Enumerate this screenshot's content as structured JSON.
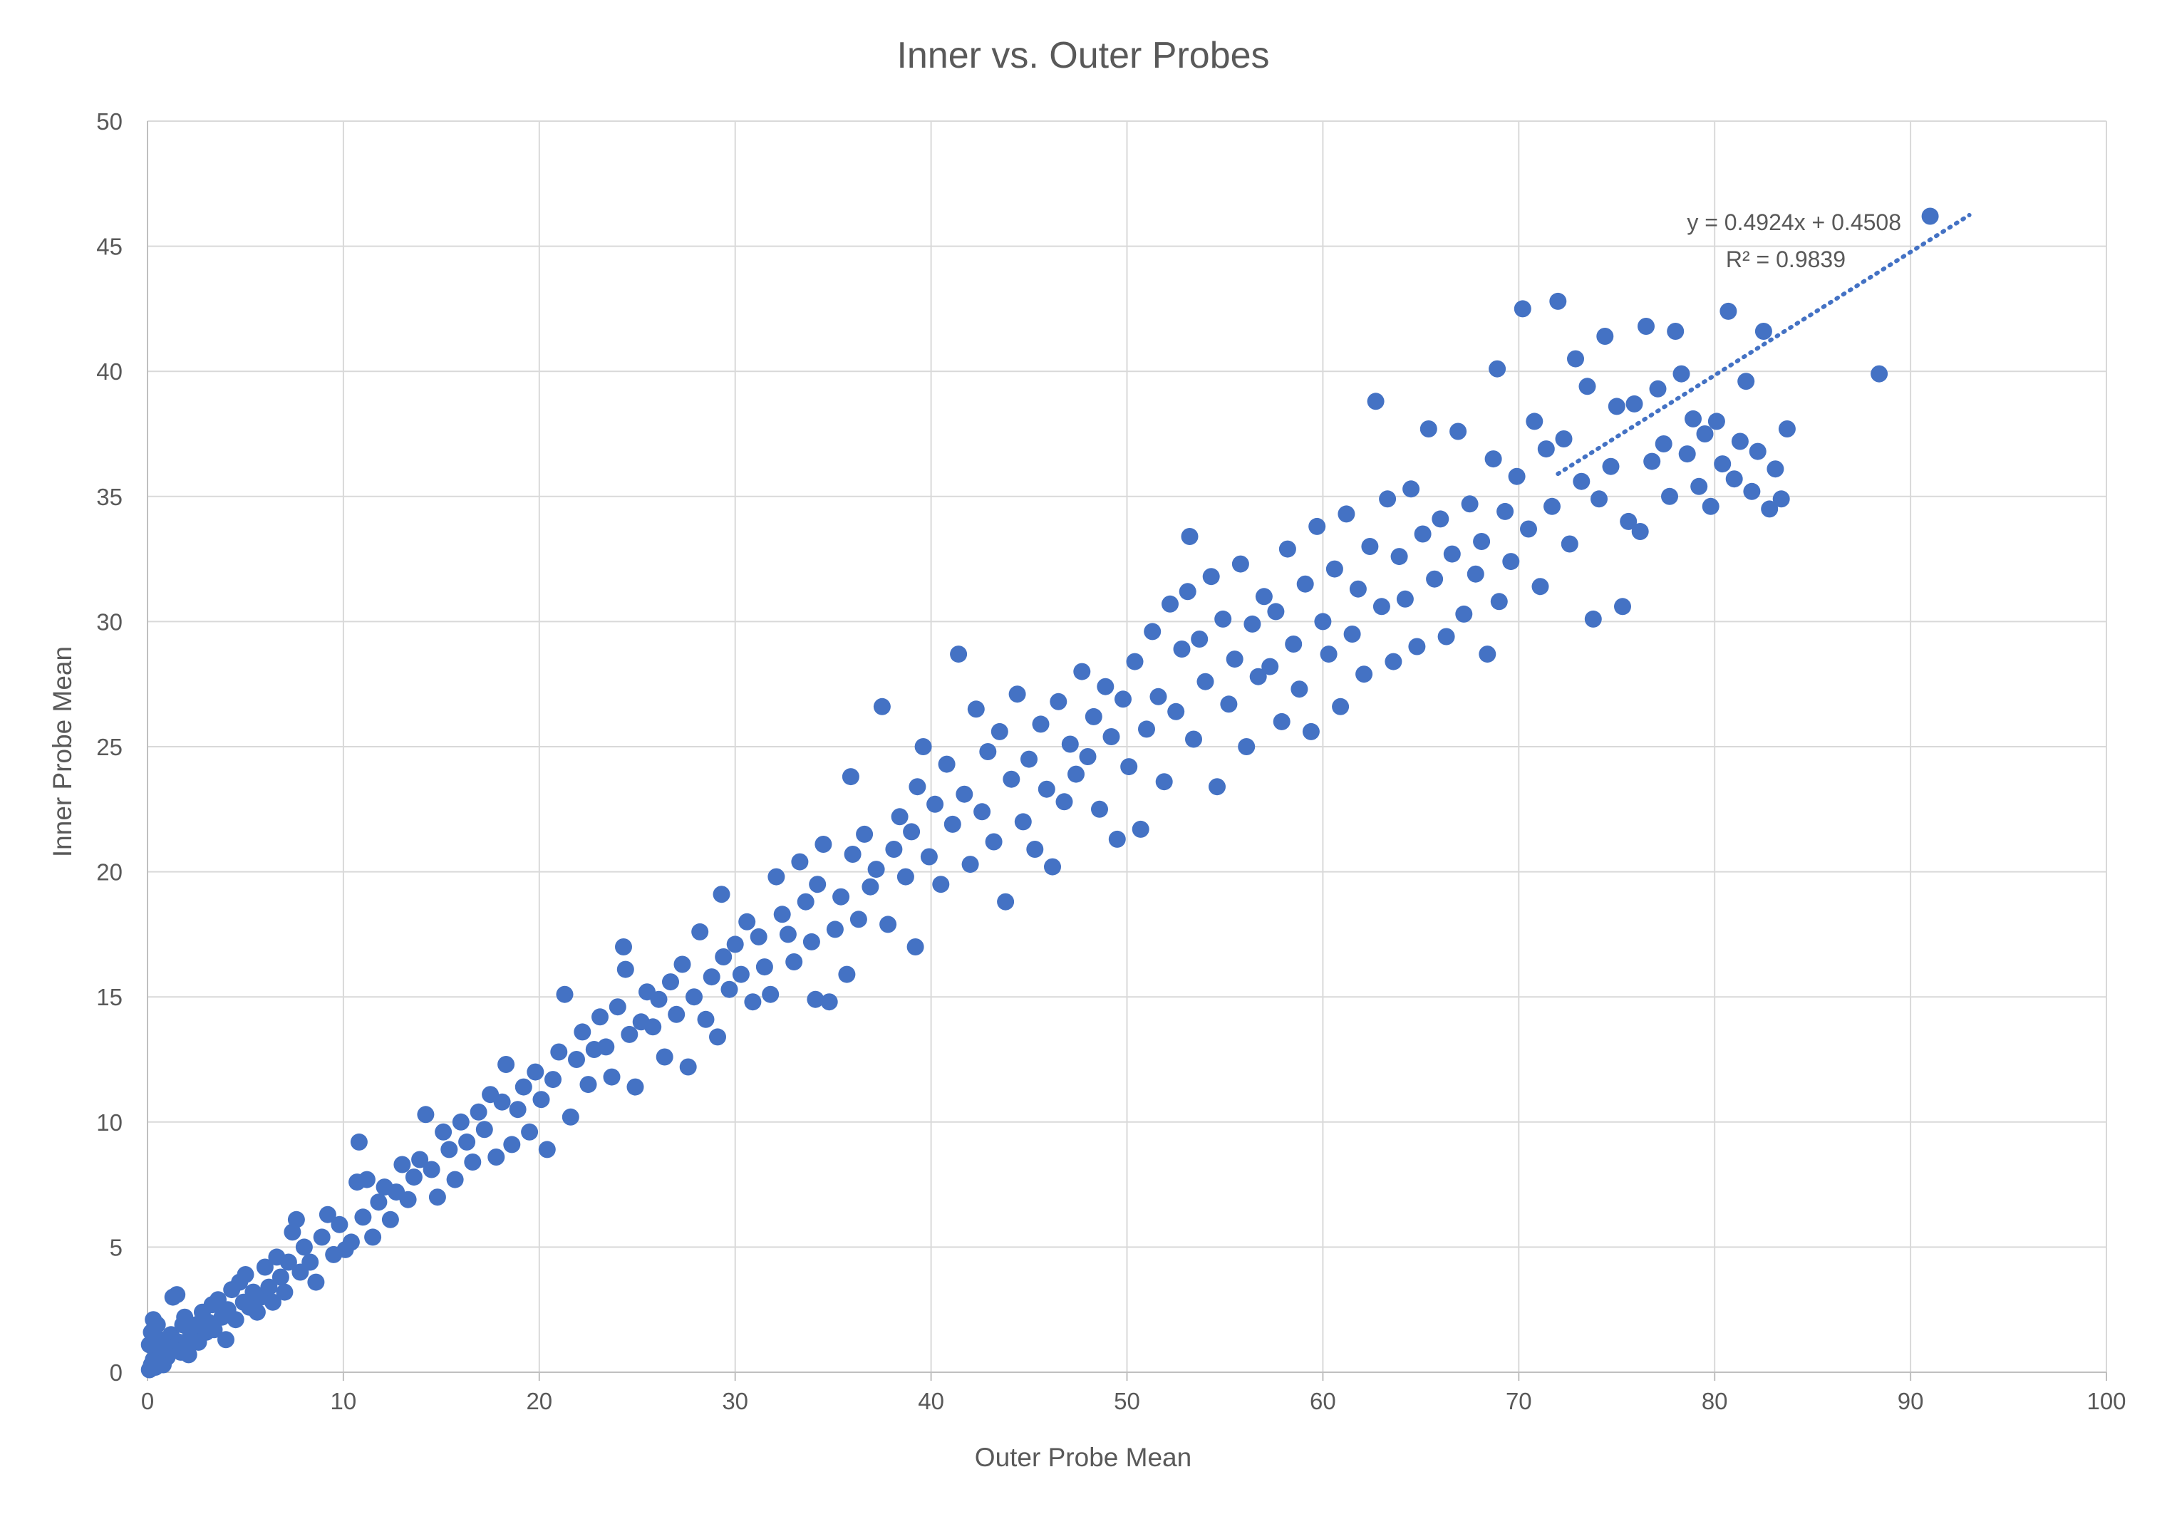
{
  "chart_data": {
    "type": "scatter",
    "title": "Inner vs. Outer Probes",
    "xlabel": "Outer Probe Mean",
    "ylabel": "Inner Probe Mean",
    "xlim": [
      0,
      100
    ],
    "ylim": [
      0,
      50
    ],
    "xticks": [
      0,
      10,
      20,
      30,
      40,
      50,
      60,
      70,
      80,
      90,
      100
    ],
    "yticks": [
      0,
      5,
      10,
      15,
      20,
      25,
      30,
      35,
      40,
      45,
      50
    ],
    "grid": true,
    "legend": "none",
    "point_color": "#4472c4",
    "trendline": {
      "type": "linear",
      "slope": 0.4924,
      "intercept": 0.4508,
      "x_range": [
        72,
        93
      ],
      "equation": "y = 0.4924x + 0.4508",
      "r_squared": "R² = 0.9839",
      "color": "#4472c4"
    },
    "series": [
      {
        "points": [
          [
            0.1,
            0.1
          ],
          [
            0.2,
            0.3
          ],
          [
            0.3,
            0.5
          ],
          [
            0.4,
            0.2
          ],
          [
            0.5,
            0.8
          ],
          [
            0.6,
            0.4
          ],
          [
            0.7,
            1.0
          ],
          [
            0.8,
            0.3
          ],
          [
            0.9,
            1.3
          ],
          [
            1.0,
            0.6
          ],
          [
            0.1,
            1.1
          ],
          [
            0.2,
            1.6
          ],
          [
            0.3,
            2.1
          ],
          [
            0.4,
            1.4
          ],
          [
            0.5,
            1.9
          ],
          [
            1.1,
            0.9
          ],
          [
            1.2,
            1.5
          ],
          [
            1.3,
            3.0
          ],
          [
            1.5,
            3.1
          ],
          [
            1.6,
            1.2
          ],
          [
            1.7,
            0.8
          ],
          [
            1.8,
            1.9
          ],
          [
            1.9,
            2.2
          ],
          [
            2.0,
            1.1
          ],
          [
            2.1,
            0.7
          ],
          [
            2.2,
            1.6
          ],
          [
            2.3,
            1.4
          ],
          [
            2.5,
            1.9
          ],
          [
            2.6,
            1.2
          ],
          [
            2.8,
            2.4
          ],
          [
            3.0,
            1.6
          ],
          [
            3.1,
            2.0
          ],
          [
            3.3,
            2.7
          ],
          [
            3.4,
            1.7
          ],
          [
            3.6,
            2.9
          ],
          [
            3.8,
            2.2
          ],
          [
            4.0,
            1.3
          ],
          [
            4.1,
            2.5
          ],
          [
            4.3,
            3.3
          ],
          [
            4.5,
            2.1
          ],
          [
            4.7,
            3.6
          ],
          [
            4.9,
            2.8
          ],
          [
            5.0,
            3.9
          ],
          [
            5.2,
            2.6
          ],
          [
            5.4,
            3.2
          ],
          [
            5.6,
            2.4
          ],
          [
            5.8,
            3.0
          ],
          [
            6.0,
            4.2
          ],
          [
            6.2,
            3.4
          ],
          [
            6.4,
            2.8
          ],
          [
            6.6,
            4.6
          ],
          [
            6.8,
            3.8
          ],
          [
            7.0,
            3.2
          ],
          [
            7.2,
            4.4
          ],
          [
            7.4,
            5.6
          ],
          [
            7.6,
            6.1
          ],
          [
            7.8,
            4.0
          ],
          [
            8.0,
            5.0
          ],
          [
            8.3,
            4.4
          ],
          [
            8.6,
            3.6
          ],
          [
            8.9,
            5.4
          ],
          [
            9.2,
            6.3
          ],
          [
            9.5,
            4.7
          ],
          [
            9.8,
            5.9
          ],
          [
            10.1,
            4.9
          ],
          [
            10.4,
            5.2
          ],
          [
            10.7,
            7.6
          ],
          [
            10.8,
            9.2
          ],
          [
            11.0,
            6.2
          ],
          [
            11.2,
            7.7
          ],
          [
            11.5,
            5.4
          ],
          [
            11.8,
            6.8
          ],
          [
            12.1,
            7.4
          ],
          [
            12.4,
            6.1
          ],
          [
            12.7,
            7.2
          ],
          [
            13.0,
            8.3
          ],
          [
            13.3,
            6.9
          ],
          [
            13.6,
            7.8
          ],
          [
            13.9,
            8.5
          ],
          [
            14.2,
            10.3
          ],
          [
            14.5,
            8.1
          ],
          [
            14.8,
            7.0
          ],
          [
            15.1,
            9.6
          ],
          [
            15.4,
            8.9
          ],
          [
            15.7,
            7.7
          ],
          [
            16.0,
            10.0
          ],
          [
            16.3,
            9.2
          ],
          [
            16.6,
            8.4
          ],
          [
            16.9,
            10.4
          ],
          [
            17.2,
            9.7
          ],
          [
            17.5,
            11.1
          ],
          [
            17.8,
            8.6
          ],
          [
            18.1,
            10.8
          ],
          [
            18.3,
            12.3
          ],
          [
            18.6,
            9.1
          ],
          [
            18.9,
            10.5
          ],
          [
            19.2,
            11.4
          ],
          [
            19.5,
            9.6
          ],
          [
            19.8,
            12.0
          ],
          [
            20.1,
            10.9
          ],
          [
            20.4,
            8.9
          ],
          [
            20.7,
            11.7
          ],
          [
            21.0,
            12.8
          ],
          [
            21.3,
            15.1
          ],
          [
            21.6,
            10.2
          ],
          [
            21.9,
            12.5
          ],
          [
            22.2,
            13.6
          ],
          [
            22.5,
            11.5
          ],
          [
            22.8,
            12.9
          ],
          [
            23.1,
            14.2
          ],
          [
            23.4,
            13.0
          ],
          [
            23.7,
            11.8
          ],
          [
            24.0,
            14.6
          ],
          [
            24.3,
            17.0
          ],
          [
            24.4,
            16.1
          ],
          [
            24.6,
            13.5
          ],
          [
            24.9,
            11.4
          ],
          [
            25.2,
            14.0
          ],
          [
            25.5,
            15.2
          ],
          [
            25.8,
            13.8
          ],
          [
            26.1,
            14.9
          ],
          [
            26.4,
            12.6
          ],
          [
            26.7,
            15.6
          ],
          [
            27.0,
            14.3
          ],
          [
            27.3,
            16.3
          ],
          [
            27.6,
            12.2
          ],
          [
            27.9,
            15.0
          ],
          [
            28.2,
            17.6
          ],
          [
            28.5,
            14.1
          ],
          [
            28.8,
            15.8
          ],
          [
            29.1,
            13.4
          ],
          [
            29.3,
            19.1
          ],
          [
            29.4,
            16.6
          ],
          [
            29.7,
            15.3
          ],
          [
            30.0,
            17.1
          ],
          [
            30.3,
            15.9
          ],
          [
            30.6,
            18.0
          ],
          [
            30.9,
            14.8
          ],
          [
            31.2,
            17.4
          ],
          [
            31.5,
            16.2
          ],
          [
            31.8,
            15.1
          ],
          [
            32.1,
            19.8
          ],
          [
            32.4,
            18.3
          ],
          [
            32.7,
            17.5
          ],
          [
            33.0,
            16.4
          ],
          [
            33.3,
            20.4
          ],
          [
            33.6,
            18.8
          ],
          [
            33.9,
            17.2
          ],
          [
            34.1,
            14.9
          ],
          [
            34.2,
            19.5
          ],
          [
            34.5,
            21.1
          ],
          [
            34.8,
            14.8
          ],
          [
            35.1,
            17.7
          ],
          [
            35.4,
            19.0
          ],
          [
            35.7,
            15.9
          ],
          [
            35.9,
            23.8
          ],
          [
            36.0,
            20.7
          ],
          [
            36.3,
            18.1
          ],
          [
            36.6,
            21.5
          ],
          [
            36.9,
            19.4
          ],
          [
            37.2,
            20.1
          ],
          [
            37.5,
            26.6
          ],
          [
            37.8,
            17.9
          ],
          [
            38.1,
            20.9
          ],
          [
            38.4,
            22.2
          ],
          [
            38.7,
            19.8
          ],
          [
            39.0,
            21.6
          ],
          [
            39.2,
            17.0
          ],
          [
            39.3,
            23.4
          ],
          [
            39.6,
            25.0
          ],
          [
            39.9,
            20.6
          ],
          [
            40.2,
            22.7
          ],
          [
            40.5,
            19.5
          ],
          [
            40.8,
            24.3
          ],
          [
            41.1,
            21.9
          ],
          [
            41.4,
            28.7
          ],
          [
            41.7,
            23.1
          ],
          [
            42.0,
            20.3
          ],
          [
            42.3,
            26.5
          ],
          [
            42.6,
            22.4
          ],
          [
            42.9,
            24.8
          ],
          [
            43.2,
            21.2
          ],
          [
            43.5,
            25.6
          ],
          [
            43.8,
            18.8
          ],
          [
            44.1,
            23.7
          ],
          [
            44.4,
            27.1
          ],
          [
            44.7,
            22.0
          ],
          [
            45.0,
            24.5
          ],
          [
            45.3,
            20.9
          ],
          [
            45.6,
            25.9
          ],
          [
            45.9,
            23.3
          ],
          [
            46.2,
            20.2
          ],
          [
            46.5,
            26.8
          ],
          [
            46.8,
            22.8
          ],
          [
            47.1,
            25.1
          ],
          [
            47.4,
            23.9
          ],
          [
            47.7,
            28.0
          ],
          [
            48.0,
            24.6
          ],
          [
            48.3,
            26.2
          ],
          [
            48.6,
            22.5
          ],
          [
            48.9,
            27.4
          ],
          [
            49.2,
            25.4
          ],
          [
            49.5,
            21.3
          ],
          [
            49.8,
            26.9
          ],
          [
            50.1,
            24.2
          ],
          [
            50.4,
            28.4
          ],
          [
            50.7,
            21.7
          ],
          [
            51.0,
            25.7
          ],
          [
            51.3,
            29.6
          ],
          [
            51.6,
            27.0
          ],
          [
            51.9,
            23.6
          ],
          [
            52.2,
            30.7
          ],
          [
            52.5,
            26.4
          ],
          [
            52.8,
            28.9
          ],
          [
            53.1,
            31.2
          ],
          [
            53.2,
            33.4
          ],
          [
            53.4,
            25.3
          ],
          [
            53.7,
            29.3
          ],
          [
            54.0,
            27.6
          ],
          [
            54.3,
            31.8
          ],
          [
            54.6,
            23.4
          ],
          [
            54.9,
            30.1
          ],
          [
            55.2,
            26.7
          ],
          [
            55.5,
            28.5
          ],
          [
            55.8,
            32.3
          ],
          [
            56.1,
            25.0
          ],
          [
            56.4,
            29.9
          ],
          [
            56.7,
            27.8
          ],
          [
            57.0,
            31.0
          ],
          [
            57.3,
            28.2
          ],
          [
            57.6,
            30.4
          ],
          [
            57.9,
            26.0
          ],
          [
            58.2,
            32.9
          ],
          [
            58.5,
            29.1
          ],
          [
            58.8,
            27.3
          ],
          [
            59.1,
            31.5
          ],
          [
            59.4,
            25.6
          ],
          [
            59.7,
            33.8
          ],
          [
            60.0,
            30.0
          ],
          [
            60.3,
            28.7
          ],
          [
            60.6,
            32.1
          ],
          [
            60.9,
            26.6
          ],
          [
            61.2,
            34.3
          ],
          [
            61.5,
            29.5
          ],
          [
            61.8,
            31.3
          ],
          [
            62.1,
            27.9
          ],
          [
            62.4,
            33.0
          ],
          [
            62.7,
            38.8
          ],
          [
            63.0,
            30.6
          ],
          [
            63.3,
            34.9
          ],
          [
            63.6,
            28.4
          ],
          [
            63.9,
            32.6
          ],
          [
            64.2,
            30.9
          ],
          [
            64.5,
            35.3
          ],
          [
            64.8,
            29.0
          ],
          [
            65.1,
            33.5
          ],
          [
            65.4,
            37.7
          ],
          [
            65.7,
            31.7
          ],
          [
            66.0,
            34.1
          ],
          [
            66.3,
            29.4
          ],
          [
            66.6,
            32.7
          ],
          [
            66.9,
            37.6
          ],
          [
            67.2,
            30.3
          ],
          [
            67.5,
            34.7
          ],
          [
            67.8,
            31.9
          ],
          [
            68.1,
            33.2
          ],
          [
            68.4,
            28.7
          ],
          [
            68.7,
            36.5
          ],
          [
            68.9,
            40.1
          ],
          [
            69.0,
            30.8
          ],
          [
            69.3,
            34.4
          ],
          [
            69.6,
            32.4
          ],
          [
            69.9,
            35.8
          ],
          [
            70.2,
            42.5
          ],
          [
            70.5,
            33.7
          ],
          [
            70.8,
            38.0
          ],
          [
            71.1,
            31.4
          ],
          [
            71.4,
            36.9
          ],
          [
            71.7,
            34.6
          ],
          [
            72.0,
            42.8
          ],
          [
            72.3,
            37.3
          ],
          [
            72.6,
            33.1
          ],
          [
            72.9,
            40.5
          ],
          [
            73.2,
            35.6
          ],
          [
            73.5,
            39.4
          ],
          [
            73.8,
            30.1
          ],
          [
            74.1,
            34.9
          ],
          [
            74.4,
            41.4
          ],
          [
            74.7,
            36.2
          ],
          [
            75.0,
            38.6
          ],
          [
            75.3,
            30.6
          ],
          [
            75.6,
            34.0
          ],
          [
            75.9,
            38.7
          ],
          [
            76.2,
            33.6
          ],
          [
            76.5,
            41.8
          ],
          [
            76.8,
            36.4
          ],
          [
            77.1,
            39.3
          ],
          [
            77.4,
            37.1
          ],
          [
            77.7,
            35.0
          ],
          [
            78.0,
            41.6
          ],
          [
            78.3,
            39.9
          ],
          [
            78.6,
            36.7
          ],
          [
            78.9,
            38.1
          ],
          [
            79.2,
            35.4
          ],
          [
            79.5,
            37.5
          ],
          [
            79.8,
            34.6
          ],
          [
            80.1,
            38.0
          ],
          [
            80.4,
            36.3
          ],
          [
            80.7,
            42.4
          ],
          [
            81.0,
            35.7
          ],
          [
            81.3,
            37.2
          ],
          [
            81.6,
            39.6
          ],
          [
            81.9,
            35.2
          ],
          [
            82.2,
            36.8
          ],
          [
            82.5,
            41.6
          ],
          [
            82.8,
            34.5
          ],
          [
            83.1,
            36.1
          ],
          [
            83.4,
            34.9
          ],
          [
            83.7,
            37.7
          ],
          [
            88.4,
            39.9
          ],
          [
            91.0,
            46.2
          ]
        ]
      }
    ]
  }
}
